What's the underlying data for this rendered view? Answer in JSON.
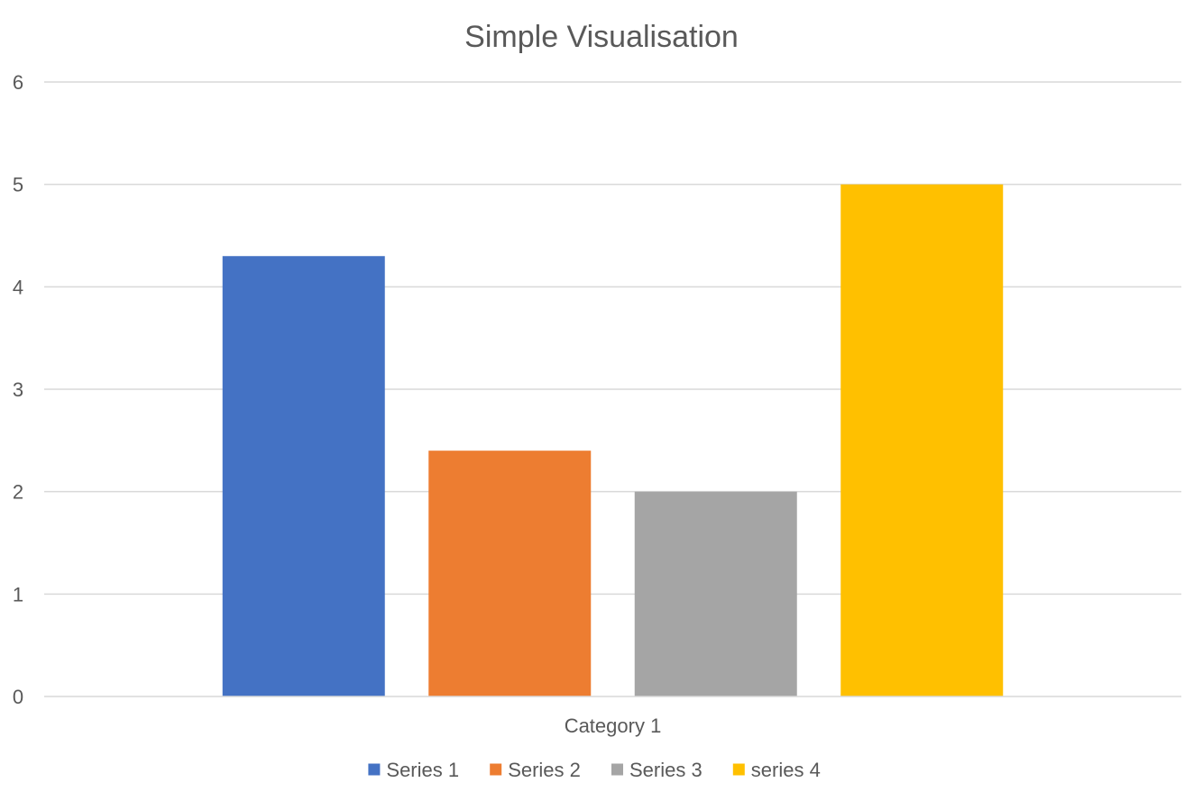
{
  "chart_data": {
    "type": "bar",
    "title": "Simple Visualisation",
    "categories": [
      "Category 1"
    ],
    "series": [
      {
        "name": "Series 1",
        "values": [
          4.3
        ],
        "color": "#4472C4"
      },
      {
        "name": "Series 2",
        "values": [
          2.4
        ],
        "color": "#ED7D31"
      },
      {
        "name": "Series 3",
        "values": [
          2.0
        ],
        "color": "#A5A5A5"
      },
      {
        "name": "series 4",
        "values": [
          5.0
        ],
        "color": "#FFC000"
      }
    ],
    "xlabel": "",
    "ylabel": "",
    "ylim": [
      0,
      6
    ],
    "yticks": [
      "0",
      "1",
      "2",
      "3",
      "4",
      "5",
      "6"
    ],
    "grid": true,
    "legend": "bottom"
  }
}
